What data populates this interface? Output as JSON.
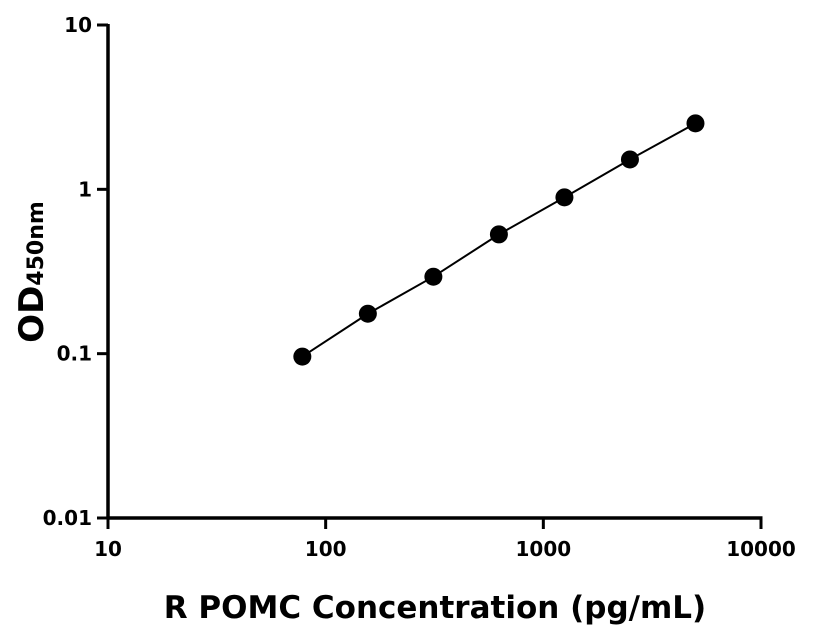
{
  "chart_data": {
    "type": "scatter",
    "title": "",
    "xlabel": "R POMC Concentration (pg/mL)",
    "ylabel": "OD",
    "ylabel_sub": "450nm",
    "xscale": "log",
    "yscale": "log",
    "xlim": [
      10,
      10000
    ],
    "ylim": [
      0.01,
      10
    ],
    "xticks": [
      10,
      100,
      1000,
      10000
    ],
    "xtick_labels": [
      "10",
      "100",
      "1000",
      "10000"
    ],
    "yticks": [
      0.01,
      0.1,
      1,
      10
    ],
    "ytick_labels": [
      "0.01",
      "0.1",
      "1",
      "10"
    ],
    "grid": false,
    "fit_line": true,
    "colors": {
      "points": "#000000",
      "line": "#000000"
    },
    "x": [
      78.125,
      156.25,
      312.5,
      625,
      1250,
      2500,
      5000
    ],
    "y": [
      0.096,
      0.175,
      0.294,
      0.532,
      0.894,
      1.52,
      2.52
    ]
  }
}
